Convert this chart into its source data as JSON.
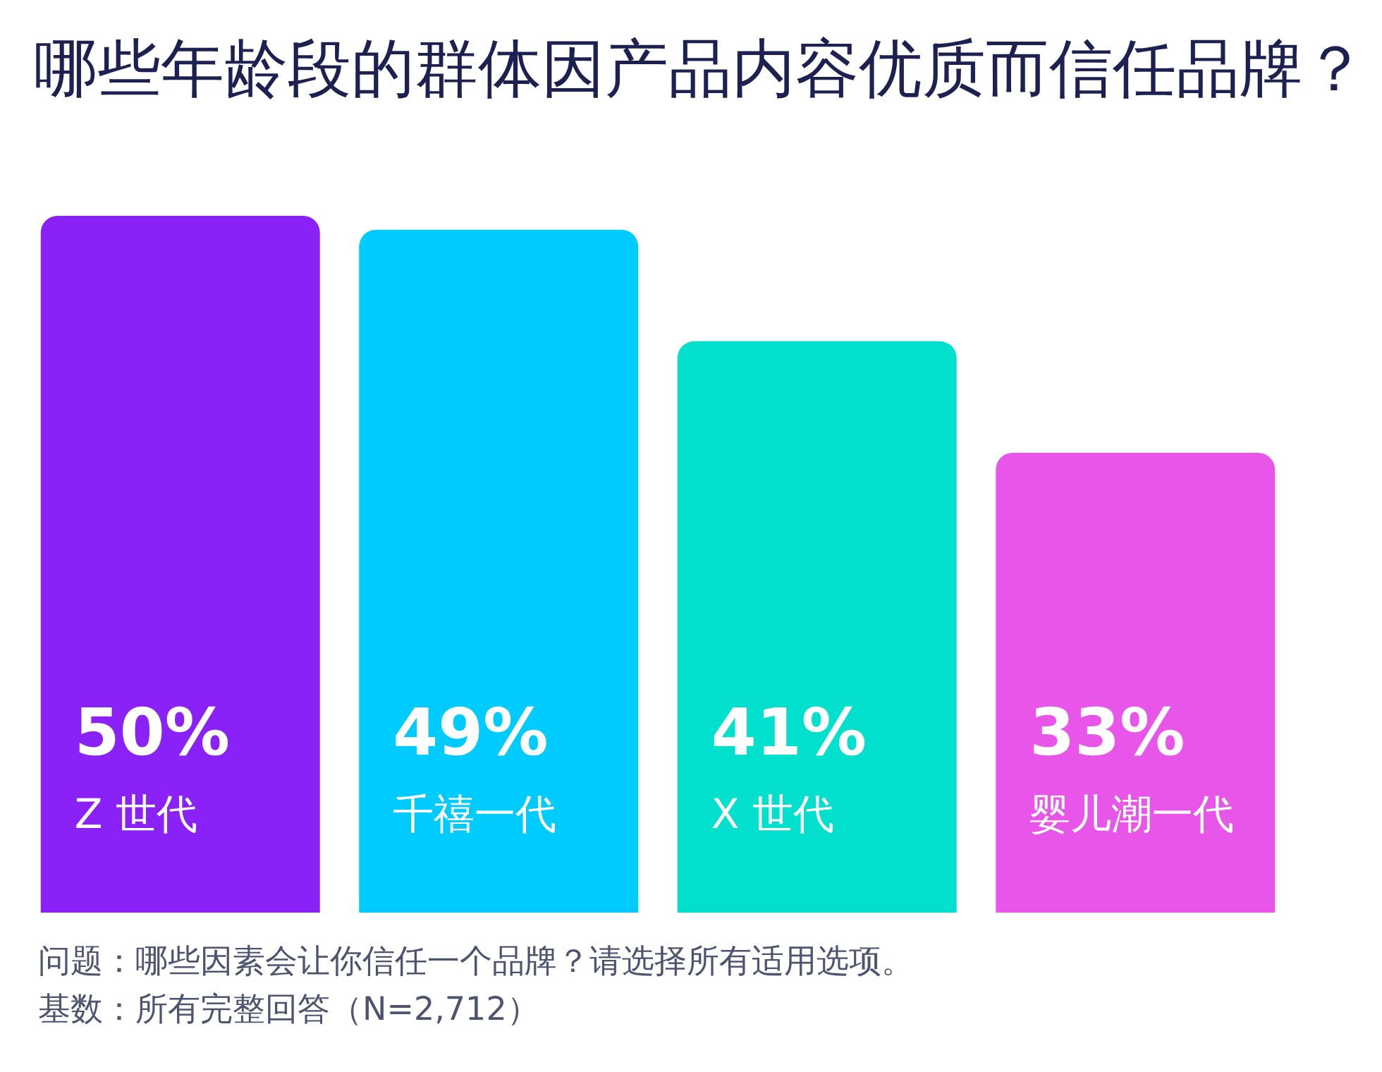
{
  "chart_data": {
    "type": "bar",
    "title": "哪些年龄段的群体因产品内容优质而信任品牌？",
    "categories": [
      "Z 世代",
      "千禧一代",
      "X 世代",
      "婴儿潮一代"
    ],
    "values": [
      50,
      49,
      41,
      33
    ],
    "value_labels": [
      "50%",
      "49%",
      "41%",
      "33%"
    ],
    "colors": [
      "#8a22f8",
      "#00cbff",
      "#00e0cd",
      "#e856e9"
    ],
    "annotations": [
      "问题：哪些因素会让你信任一个品牌？请选择所有适用选项。",
      "基数：所有完整回答（N=2,712）"
    ]
  }
}
